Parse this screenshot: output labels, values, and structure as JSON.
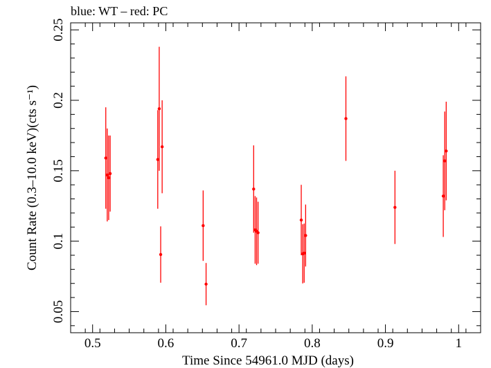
{
  "chart_data": {
    "type": "scatter",
    "title": "blue: WT – red: PC",
    "xlabel": "Time Since 54961.0 MJD (days)",
    "ylabel": "Count Rate (0.3–10.0 keV)(cts s⁻¹)",
    "xlim": [
      0.47,
      1.03
    ],
    "ylim": [
      0.035,
      0.255
    ],
    "x_ticks": [
      0.5,
      0.6,
      0.7,
      0.8,
      0.9,
      1.0
    ],
    "x_tick_labels": [
      "0.5",
      "0.6",
      "0.7",
      "0.8",
      "0.9",
      "1"
    ],
    "y_ticks": [
      0.05,
      0.1,
      0.15,
      0.2,
      0.25
    ],
    "y_tick_labels": [
      "0.05",
      "0.1",
      "0.15",
      "0.2",
      "0.25"
    ],
    "grid": false,
    "series": [
      {
        "color": "#ff0000",
        "marker": "dot-with-y-errorbar",
        "points": [
          {
            "x": 0.518,
            "y": 0.159,
            "err": 0.036
          },
          {
            "x": 0.52,
            "y": 0.147,
            "err": 0.033
          },
          {
            "x": 0.522,
            "y": 0.145,
            "err": 0.03
          },
          {
            "x": 0.524,
            "y": 0.148,
            "err": 0.027
          },
          {
            "x": 0.589,
            "y": 0.158,
            "err": 0.035
          },
          {
            "x": 0.591,
            "y": 0.194,
            "err": 0.044
          },
          {
            "x": 0.593,
            "y": 0.0905,
            "err": 0.02
          },
          {
            "x": 0.595,
            "y": 0.167,
            "err": 0.033
          },
          {
            "x": 0.651,
            "y": 0.111,
            "err": 0.025
          },
          {
            "x": 0.655,
            "y": 0.0695,
            "err": 0.015
          },
          {
            "x": 0.72,
            "y": 0.137,
            "err": 0.031
          },
          {
            "x": 0.722,
            "y": 0.108,
            "err": 0.024
          },
          {
            "x": 0.724,
            "y": 0.107,
            "err": 0.024
          },
          {
            "x": 0.726,
            "y": 0.106,
            "err": 0.022
          },
          {
            "x": 0.785,
            "y": 0.115,
            "err": 0.025
          },
          {
            "x": 0.787,
            "y": 0.091,
            "err": 0.021
          },
          {
            "x": 0.789,
            "y": 0.0915,
            "err": 0.021
          },
          {
            "x": 0.791,
            "y": 0.104,
            "err": 0.022
          },
          {
            "x": 0.846,
            "y": 0.187,
            "err": 0.03
          },
          {
            "x": 0.913,
            "y": 0.124,
            "err": 0.026
          },
          {
            "x": 0.979,
            "y": 0.132,
            "err": 0.029
          },
          {
            "x": 0.981,
            "y": 0.157,
            "err": 0.035
          },
          {
            "x": 0.983,
            "y": 0.164,
            "err": 0.035
          }
        ]
      }
    ]
  }
}
